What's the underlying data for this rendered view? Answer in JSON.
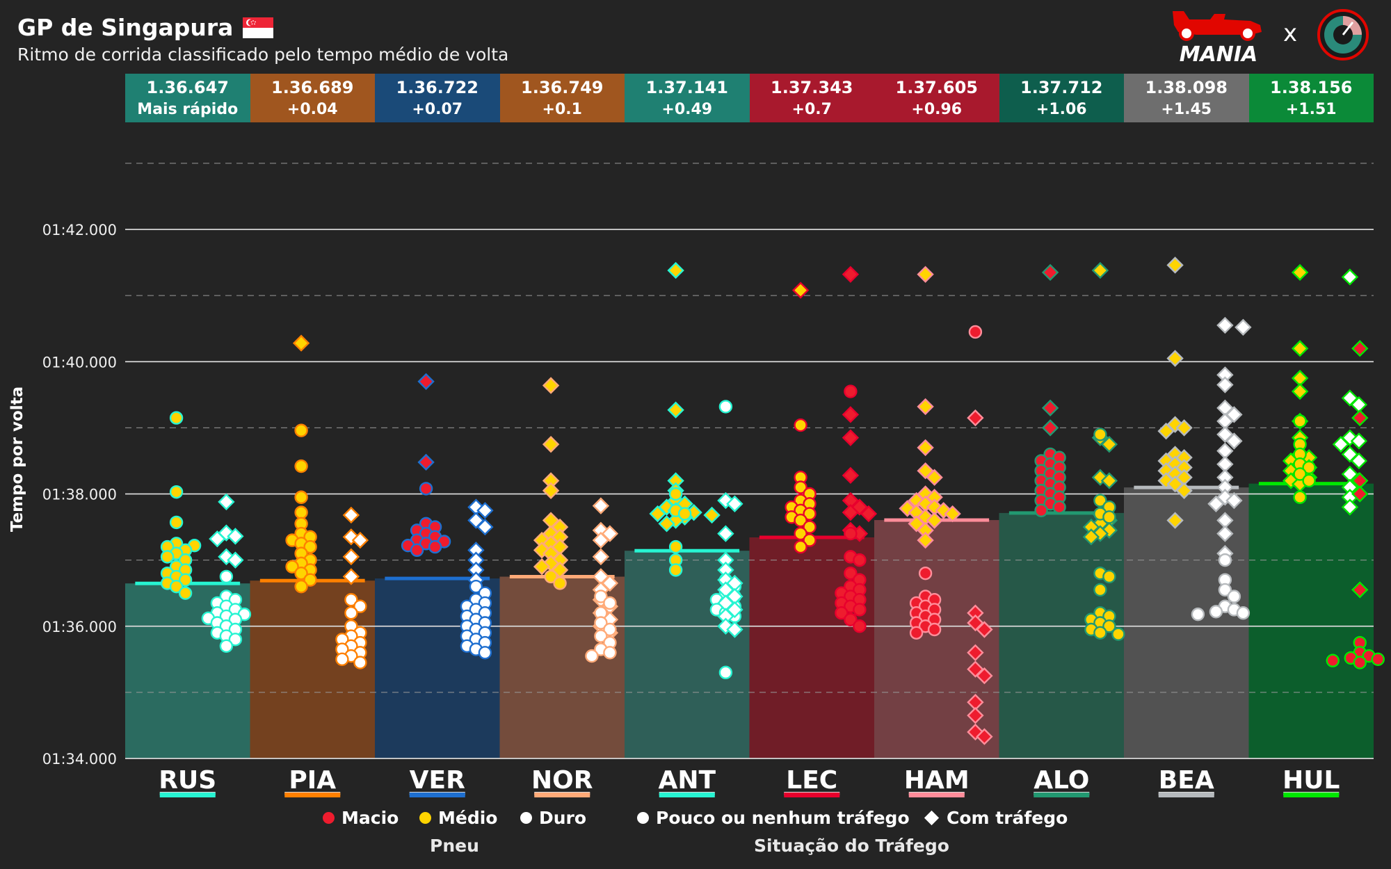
{
  "header": {
    "title": "GP de Singapura",
    "subtitle": "Ritmo de corrida classificado pelo tempo médio de volta",
    "brand_name": "MANIA",
    "brand_separator": "x"
  },
  "legend": {
    "tyre_title": "Pneu",
    "traffic_title": "Situação do Tráfego",
    "soft": "Macio",
    "medium": "Médio",
    "hard": "Duro",
    "no_traffic": "Pouco ou nenhum tráfego",
    "traffic": "Com tráfego",
    "colors": {
      "soft": "#ee1c2e",
      "medium": "#ffd400",
      "hard": "#ffffff"
    }
  },
  "chart_data": {
    "type": "bar",
    "title": "GP de Singapura",
    "subtitle": "Ritmo de corrida classificado pelo tempo médio de volta",
    "ylabel": "Tempo por volta",
    "xlabel": "",
    "ylim": [
      94,
      104
    ],
    "yticks": [
      {
        "value": 94,
        "label": "01:34.000"
      },
      {
        "value": 96,
        "label": "01:36.000"
      },
      {
        "value": 98,
        "label": "01:38.000"
      },
      {
        "value": 100,
        "label": "01:40.000"
      },
      {
        "value": 102,
        "label": "01:42.000"
      }
    ],
    "minor_gridlines": [
      95,
      97,
      99,
      101,
      103
    ],
    "drivers": [
      {
        "code": "RUS",
        "avg": 96.647,
        "avg_label": "1.36.647",
        "gap_label": "Mais rápido",
        "color": "#27f4d2",
        "bar": "#2b6b60",
        "header": "#1f8072",
        "groups": [
          {
            "tyre": "medium",
            "shape": "circle",
            "col": 0,
            "times": [
              99.15,
              98.03,
              97.57,
              97.25,
              97.22,
              97.2,
              97.15,
              97.1,
              97.05,
              97.0,
              96.9,
              96.85,
              96.8,
              96.75,
              96.7,
              96.65,
              96.6,
              96.5
            ]
          },
          {
            "tyre": "hard",
            "shape": "diamond",
            "col": 1,
            "times": [
              97.88,
              97.41,
              97.36,
              97.32,
              97.05,
              97.0
            ]
          },
          {
            "tyre": "hard",
            "shape": "circle",
            "col": 1,
            "times": [
              96.75,
              96.45,
              96.4,
              96.35,
              96.3,
              96.25,
              96.2,
              96.18,
              96.15,
              96.12,
              96.1,
              96.05,
              96.0,
              95.95,
              95.9,
              95.85,
              95.8,
              95.7
            ]
          }
        ]
      },
      {
        "code": "PIA",
        "avg": 96.689,
        "avg_label": "1.36.689",
        "gap_label": "+0.04",
        "color": "#ff8000",
        "bar": "#74411f",
        "header": "#a0561f",
        "groups": [
          {
            "tyre": "medium",
            "shape": "diamond",
            "col": 0,
            "times": [
              100.28
            ]
          },
          {
            "tyre": "medium",
            "shape": "circle",
            "col": 0,
            "times": [
              98.96,
              98.42,
              97.95,
              97.72,
              97.55,
              97.4,
              97.35,
              97.3,
              97.25,
              97.2,
              97.1,
              97.0,
              96.95,
              96.9,
              96.85,
              96.8,
              96.7,
              96.6
            ]
          },
          {
            "tyre": "hard",
            "shape": "diamond",
            "col": 1,
            "times": [
              97.68,
              97.35,
              97.3,
              97.05,
              96.75
            ]
          },
          {
            "tyre": "hard",
            "shape": "circle",
            "col": 1,
            "times": [
              96.4,
              96.3,
              96.2,
              96.0,
              95.9,
              95.85,
              95.8,
              95.75,
              95.7,
              95.65,
              95.6,
              95.55,
              95.5,
              95.45
            ]
          }
        ]
      },
      {
        "code": "VER",
        "avg": 96.722,
        "avg_label": "1.36.722",
        "gap_label": "+0.07",
        "color": "#1e6fd0",
        "bar": "#1c3a5c",
        "header": "#1a4a78",
        "groups": [
          {
            "tyre": "soft",
            "shape": "diamond",
            "col": 0,
            "times": [
              99.7,
              98.48
            ]
          },
          {
            "tyre": "soft",
            "shape": "circle",
            "col": 0,
            "times": [
              98.08,
              97.55,
              97.5,
              97.45,
              97.4,
              97.35,
              97.3,
              97.28,
              97.25,
              97.22,
              97.2,
              97.15
            ]
          },
          {
            "tyre": "hard",
            "shape": "diamond",
            "col": 1,
            "times": [
              97.8,
              97.75,
              97.6,
              97.5,
              97.15,
              97.0,
              96.85,
              96.7
            ]
          },
          {
            "tyre": "hard",
            "shape": "circle",
            "col": 1,
            "times": [
              96.6,
              96.5,
              96.4,
              96.35,
              96.3,
              96.25,
              96.2,
              96.15,
              96.1,
              96.05,
              96.0,
              95.95,
              95.9,
              95.85,
              95.8,
              95.75,
              95.7,
              95.65,
              95.6
            ]
          }
        ]
      },
      {
        "code": "NOR",
        "avg": 96.749,
        "avg_label": "1.36.749",
        "gap_label": "+0.1",
        "color": "#ffaa78",
        "bar": "#744c3c",
        "header": "#a0561f",
        "groups": [
          {
            "tyre": "medium",
            "shape": "diamond",
            "col": 0,
            "times": [
              99.64,
              98.75,
              98.2,
              98.05,
              97.6,
              97.5,
              97.4,
              97.35,
              97.3,
              97.25,
              97.2,
              97.15,
              97.1,
              97.0,
              96.95,
              96.9,
              96.85
            ]
          },
          {
            "tyre": "medium",
            "shape": "circle",
            "col": 0,
            "times": [
              96.75,
              96.65
            ]
          },
          {
            "tyre": "hard",
            "shape": "diamond",
            "col": 1,
            "times": [
              97.82,
              97.45,
              97.4,
              97.3,
              97.05,
              96.75,
              96.65,
              96.55,
              96.4,
              96.3,
              96.2,
              96.1,
              96.0,
              95.9
            ]
          },
          {
            "tyre": "hard",
            "shape": "circle",
            "col": 1,
            "times": [
              96.45,
              96.35,
              96.2,
              96.05,
              95.95,
              95.85,
              95.75,
              95.65,
              95.6,
              95.55
            ]
          }
        ]
      },
      {
        "code": "ANT",
        "avg": 97.141,
        "avg_label": "1.37.141",
        "gap_label": "+0.49",
        "color": "#27f4d2",
        "bar": "#2f5f58",
        "header": "#1f8072",
        "groups": [
          {
            "tyre": "medium",
            "shape": "diamond",
            "col": 0,
            "times": [
              101.38,
              99.27,
              98.2,
              98.05,
              97.9,
              97.85,
              97.8,
              97.75,
              97.72,
              97.7,
              97.68,
              97.65,
              97.6,
              97.55
            ]
          },
          {
            "tyre": "medium",
            "shape": "circle",
            "col": 0,
            "times": [
              98.0,
              97.75,
              97.7,
              97.2,
              97.0,
              96.85
            ]
          },
          {
            "tyre": "hard",
            "shape": "circle",
            "col": 1,
            "times": [
              99.32,
              96.7,
              96.6,
              96.5,
              96.45,
              96.4,
              96.35,
              96.3,
              96.25,
              96.2,
              96.15,
              95.3
            ]
          },
          {
            "tyre": "hard",
            "shape": "diamond",
            "col": 1,
            "times": [
              97.9,
              97.85,
              97.4,
              97.0,
              96.85,
              96.7,
              96.65,
              96.55,
              96.45,
              96.35,
              96.25,
              96.15,
              96.0,
              95.95
            ]
          }
        ]
      },
      {
        "code": "LEC",
        "avg": 97.343,
        "avg_label": "1.37.343",
        "gap_label": "+0.7",
        "color": "#e8002d",
        "bar": "#701d27",
        "header": "#a8192d",
        "groups": [
          {
            "tyre": "medium",
            "shape": "diamond",
            "col": 0,
            "times": [
              101.08
            ]
          },
          {
            "tyre": "medium",
            "shape": "circle",
            "col": 0,
            "times": [
              99.04,
              98.25,
              98.1,
              98.0,
              97.9,
              97.85,
              97.8,
              97.75,
              97.7,
              97.65,
              97.6,
              97.5,
              97.4,
              97.3,
              97.2
            ]
          },
          {
            "tyre": "soft",
            "shape": "diamond",
            "col": 1,
            "times": [
              101.32,
              99.2,
              98.85,
              98.28,
              97.9,
              97.8,
              97.72,
              97.7,
              97.45,
              97.4
            ]
          },
          {
            "tyre": "soft",
            "shape": "circle",
            "col": 1,
            "times": [
              99.55,
              97.4,
              97.05,
              97.0,
              96.8,
              96.7,
              96.6,
              96.55,
              96.5,
              96.45,
              96.4,
              96.35,
              96.3,
              96.25,
              96.2,
              96.1,
              96.0
            ]
          }
        ]
      },
      {
        "code": "HAM",
        "avg": 97.605,
        "avg_label": "1.37.605",
        "gap_label": "+0.96",
        "color": "#ff8d9a",
        "bar": "#734044",
        "header": "#a8192d",
        "groups": [
          {
            "tyre": "medium",
            "shape": "diamond",
            "col": 0,
            "times": [
              101.32,
              99.32,
              98.7,
              98.35,
              98.25,
              98.0,
              97.95,
              97.9,
              97.85,
              97.8,
              97.78,
              97.75,
              97.72,
              97.7,
              97.65,
              97.6,
              97.55,
              97.45,
              97.3
            ]
          },
          {
            "tyre": "soft",
            "shape": "circle",
            "col": 0,
            "times": [
              96.8,
              96.45,
              96.4,
              96.35,
              96.3,
              96.25,
              96.2,
              96.15,
              96.1,
              96.05,
              96.0,
              95.95,
              95.9
            ]
          },
          {
            "tyre": "soft",
            "shape": "circle",
            "col": 1,
            "times": [
              100.45
            ]
          },
          {
            "tyre": "soft",
            "shape": "diamond",
            "col": 1,
            "times": [
              99.15,
              96.2,
              96.05,
              95.95,
              95.6,
              95.35,
              95.25,
              94.85,
              94.65,
              94.4,
              94.33
            ]
          }
        ]
      },
      {
        "code": "ALO",
        "avg": 97.712,
        "avg_label": "1.37.712",
        "gap_label": "+1.06",
        "color": "#229971",
        "bar": "#265848",
        "header": "#0e5e4d",
        "groups": [
          {
            "tyre": "soft",
            "shape": "diamond",
            "col": 0,
            "times": [
              101.35,
              99.3,
              99.0
            ]
          },
          {
            "tyre": "soft",
            "shape": "circle",
            "col": 0,
            "times": [
              98.6,
              98.55,
              98.5,
              98.45,
              98.4,
              98.35,
              98.3,
              98.25,
              98.2,
              98.15,
              98.1,
              98.05,
              98.0,
              97.95,
              97.9,
              97.85,
              97.8,
              97.75
            ]
          },
          {
            "tyre": "medium",
            "shape": "diamond",
            "col": 1,
            "times": [
              101.38,
              98.85,
              98.75,
              98.25,
              98.2,
              97.7,
              97.6,
              97.55,
              97.5,
              97.45,
              97.4,
              97.35
            ]
          },
          {
            "tyre": "medium",
            "shape": "circle",
            "col": 1,
            "times": [
              98.9,
              97.9,
              97.8,
              97.7,
              97.65,
              96.8,
              96.75,
              96.55,
              96.2,
              96.15,
              96.1,
              96.05,
              96.0,
              95.95,
              95.9,
              95.88
            ]
          }
        ]
      },
      {
        "code": "BEA",
        "avg": 98.098,
        "avg_label": "1.38.098",
        "gap_label": "+1.45",
        "color": "#b6babd",
        "bar": "#525252",
        "header": "#6e6e6e",
        "groups": [
          {
            "tyre": "medium",
            "shape": "diamond",
            "col": 0,
            "times": [
              101.46,
              100.05,
              99.05,
              99.0,
              98.95,
              98.6,
              98.55,
              98.5,
              98.45,
              98.4,
              98.35,
              98.3,
              98.25,
              98.2,
              98.15,
              98.05,
              97.6
            ]
          },
          {
            "tyre": "hard",
            "shape": "diamond",
            "col": 1,
            "times": [
              100.55,
              100.52,
              99.8,
              99.65,
              99.3,
              99.2,
              99.1,
              98.9,
              98.8,
              98.65,
              98.45,
              98.25,
              98.1,
              97.95,
              97.9,
              97.85,
              97.6,
              97.4,
              97.1
            ]
          },
          {
            "tyre": "hard",
            "shape": "circle",
            "col": 1,
            "times": [
              97.0,
              96.7,
              96.55,
              96.45,
              96.3,
              96.25,
              96.22,
              96.2,
              96.18
            ]
          }
        ]
      },
      {
        "code": "HUL",
        "avg": 98.156,
        "avg_label": "1.38.156",
        "gap_label": "+1.51",
        "color": "#00e701",
        "bar": "#0c5e2c",
        "header": "#0b8a38",
        "groups": [
          {
            "tyre": "medium",
            "shape": "diamond",
            "col": 0,
            "times": [
              101.35,
              100.2,
              99.75,
              99.55,
              99.1,
              98.85,
              98.6,
              98.55,
              98.5,
              98.45,
              98.4,
              98.35,
              98.3,
              98.25,
              98.2,
              98.15
            ]
          },
          {
            "tyre": "medium",
            "shape": "circle",
            "col": 0,
            "times": [
              99.1,
              98.75,
              98.6,
              98.45,
              98.4,
              98.3,
              98.2,
              97.95
            ]
          },
          {
            "tyre": "hard",
            "shape": "diamond",
            "col": 1,
            "times": [
              101.28,
              99.45,
              99.35,
              98.85,
              98.8,
              98.75,
              98.6,
              98.5,
              98.3,
              98.2,
              98.1,
              97.95,
              97.8
            ]
          },
          {
            "tyre": "soft",
            "shape": "diamond",
            "col": 2,
            "times": [
              100.2,
              99.15,
              98.2,
              98.0,
              96.55
            ]
          },
          {
            "tyre": "soft",
            "shape": "circle",
            "col": 2,
            "times": [
              95.75,
              95.6,
              95.55,
              95.52,
              95.5,
              95.48,
              95.45
            ]
          }
        ]
      }
    ]
  }
}
